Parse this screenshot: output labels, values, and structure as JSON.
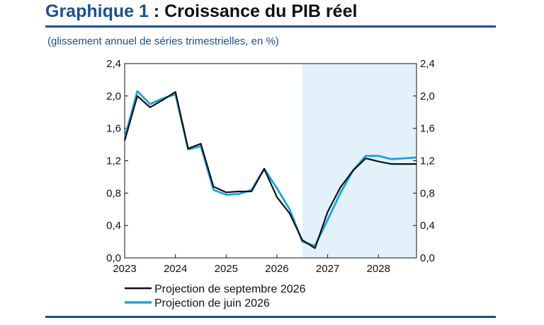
{
  "header": {
    "title_label": "Graphique 1",
    "title_text": " : Croissance du PIB réel",
    "subtitle": "(glissement annuel de séries trimestrielles, en %)"
  },
  "chart_data": {
    "type": "line",
    "title": "Graphique 1 : Croissance du PIB réel",
    "subtitle": "(glissement annuel de séries trimestrielles, en %)",
    "x_ticks": [
      "2023",
      "2024",
      "2025",
      "2026",
      "2027",
      "2028"
    ],
    "y_ticks": [
      "0,0",
      "0,4",
      "0,8",
      "1,2",
      "1,6",
      "2,0",
      "2,4"
    ],
    "ylim": [
      0,
      2.4
    ],
    "xlim": [
      "2023-Q1",
      "2028-Q4"
    ],
    "y_axis_mirrored_right": true,
    "grid": false,
    "projection_shading_start": "2026-Q3",
    "projection_shading_color": "#e3f1fb",
    "x": [
      "2023-Q1",
      "2023-Q2",
      "2023-Q3",
      "2023-Q4",
      "2024-Q1",
      "2024-Q2",
      "2024-Q3",
      "2024-Q4",
      "2025-Q1",
      "2025-Q2",
      "2025-Q3",
      "2025-Q4",
      "2026-Q1",
      "2026-Q2",
      "2026-Q3",
      "2026-Q4",
      "2027-Q1",
      "2027-Q2",
      "2027-Q3",
      "2027-Q4",
      "2028-Q1",
      "2028-Q2",
      "2028-Q3",
      "2028-Q4"
    ],
    "series": [
      {
        "name": "Projection de septembre 2026",
        "color": "#111111",
        "values": [
          1.45,
          2.0,
          1.86,
          1.95,
          2.05,
          1.35,
          1.41,
          0.88,
          0.81,
          0.82,
          0.82,
          1.1,
          0.75,
          0.55,
          0.22,
          0.12,
          0.57,
          0.87,
          1.08,
          1.23,
          1.19,
          1.16,
          1.16,
          1.16
        ]
      },
      {
        "name": "Projection de juin 2026",
        "color": "#1aa3e0",
        "values": [
          1.48,
          2.06,
          1.9,
          1.97,
          2.02,
          1.34,
          1.38,
          0.84,
          0.78,
          0.79,
          0.84,
          1.1,
          0.86,
          0.6,
          0.2,
          0.15,
          0.47,
          0.8,
          1.08,
          1.26,
          1.26,
          1.22,
          1.23,
          1.24
        ]
      }
    ],
    "legend_position": "bottom-left"
  }
}
